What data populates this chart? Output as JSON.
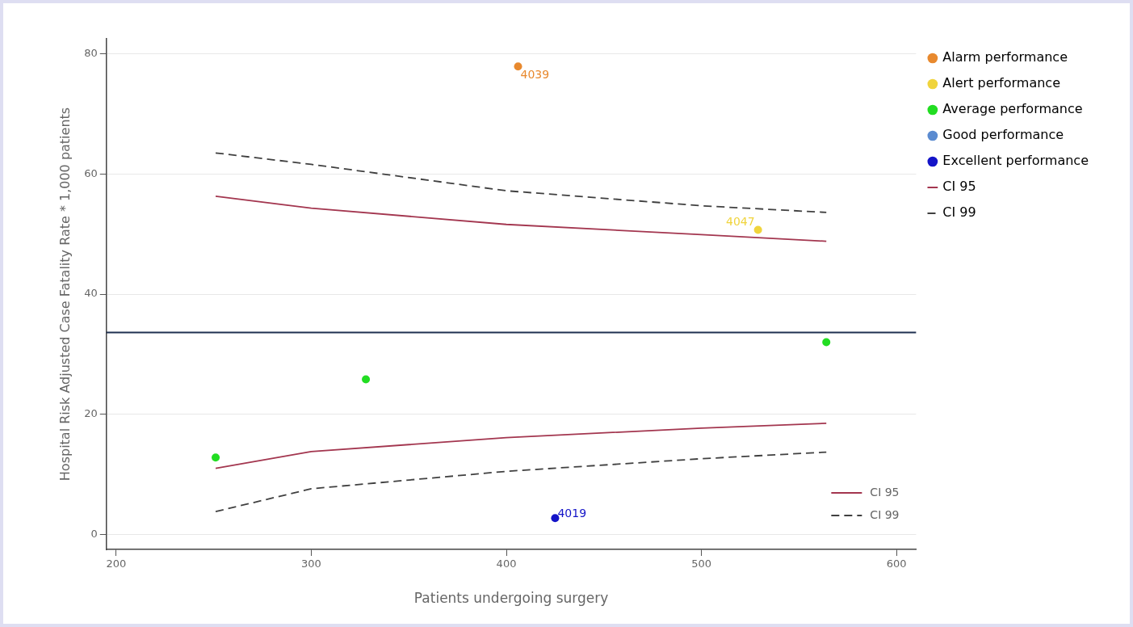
{
  "chart_data": {
    "type": "scatter",
    "xlabel": "Patients undergoing surgery",
    "ylabel": "Hospital Risk Adjusted Case Fatality Rate * 1,000 patients",
    "xlim": [
      195,
      610
    ],
    "xticks": [
      200,
      300,
      400,
      500,
      600
    ],
    "ylim": [
      -2.5,
      82.5
    ],
    "yticks": [
      0,
      20,
      40,
      60,
      80
    ],
    "grid": "y",
    "legend": "right",
    "marker": "circle",
    "series": [
      {
        "name": "Alarm performance",
        "color": "#e8892e",
        "x": [
          406
        ],
        "values": [
          77.9
        ]
      },
      {
        "name": "Alert performance",
        "color": "#f0d43c",
        "x": [
          529
        ],
        "values": [
          50.7
        ]
      },
      {
        "name": "Average performance",
        "color": "#22dd22",
        "x": [
          251,
          328,
          564
        ],
        "values": [
          12.8,
          25.8,
          32.0
        ]
      },
      {
        "name": "Good performance",
        "color": "#5b8bd0"
      },
      {
        "name": "Excellent performance",
        "color": "#1414c8",
        "x": [
          425
        ],
        "values": [
          2.7
        ]
      },
      {
        "name": "CI 95",
        "type": "line",
        "color": "#a3364f",
        "line_style": "solid",
        "marker": "none",
        "x": [
          251,
          300,
          400,
          500,
          564
        ],
        "values": [
          56.3,
          54.3,
          51.6,
          49.9,
          48.8
        ]
      },
      {
        "name": "CI 99",
        "type": "line",
        "color": "#404040",
        "line_style": "dashed",
        "marker": "none",
        "x": [
          251,
          300,
          400,
          500,
          564
        ],
        "values": [
          63.5,
          61.6,
          57.2,
          54.7,
          53.6
        ]
      },
      {
        "name": "CI 95",
        "type": "line",
        "color": "#a3364f",
        "line_style": "solid",
        "marker": "none",
        "x": [
          251,
          300,
          400,
          500,
          564
        ],
        "values": [
          11.0,
          13.8,
          16.1,
          17.7,
          18.5
        ]
      },
      {
        "name": "CI 99",
        "type": "line",
        "color": "#404040",
        "line_style": "dashed",
        "marker": "none",
        "x": [
          251,
          300,
          400,
          500,
          564
        ],
        "values": [
          3.8,
          7.6,
          10.5,
          12.6,
          13.7
        ]
      }
    ],
    "annotations": [
      {
        "text": "4039",
        "x": 406,
        "y": 77.9
      },
      {
        "text": "4047",
        "x": 529,
        "y": 50.7
      },
      {
        "text": "4019",
        "x": 425,
        "y": 2.7
      }
    ],
    "ref_lines": [
      {
        "axis": "y",
        "value": 33.6,
        "color": "#1f3050",
        "line_style": "solid"
      }
    ]
  }
}
